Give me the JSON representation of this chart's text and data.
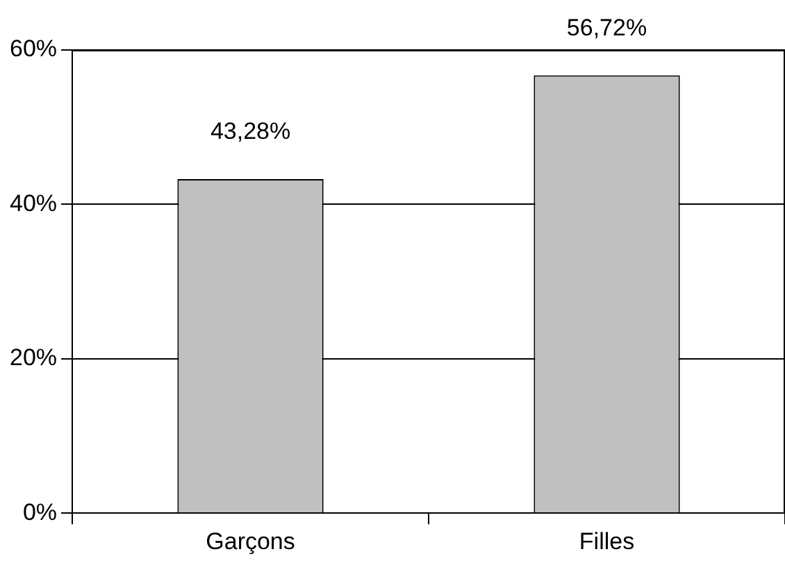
{
  "chart_data": {
    "type": "bar",
    "categories": [
      "Garçons",
      "Filles"
    ],
    "values": [
      43.28,
      56.72
    ],
    "color": "#c0c0c0",
    "value_labels": [
      "43,28%",
      "56,72%"
    ],
    "ylim": [
      0,
      60
    ],
    "yticks": [
      {
        "value": 0,
        "label": "0%"
      },
      {
        "value": 20,
        "label": "20%"
      },
      {
        "value": 40,
        "label": "40%"
      },
      {
        "value": 60,
        "label": "60%"
      }
    ],
    "grid": "y",
    "legend": false
  }
}
